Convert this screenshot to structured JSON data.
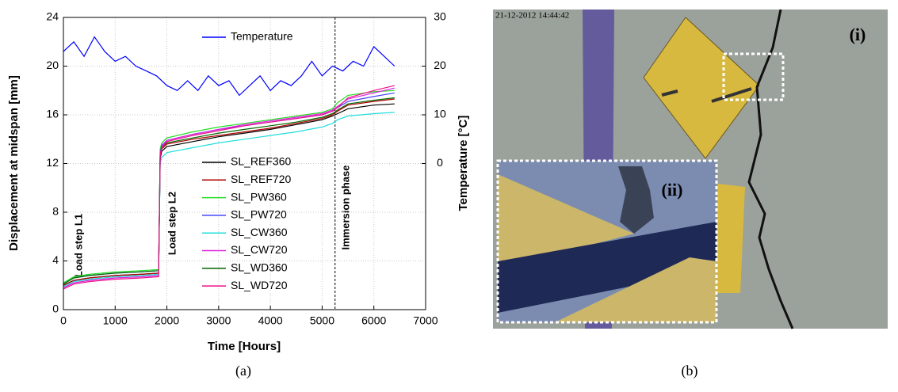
{
  "chart_data": {
    "type": "line",
    "xlabel": "Time [Hours]",
    "ylabel": "Displacement at midspan [mm]",
    "y2label": "Temperature [°C]",
    "annotations": [
      "Load step L1",
      "Load step L2",
      "Immersion phase"
    ],
    "vline_x": 5250,
    "xlim": [
      0,
      7000
    ],
    "xticks": [
      0,
      1000,
      2000,
      3000,
      4000,
      5000,
      6000,
      7000
    ],
    "ylim": [
      0,
      24
    ],
    "yticks": [
      0,
      4,
      8,
      12,
      16,
      20,
      24
    ],
    "y2lim": [
      -30,
      30
    ],
    "y2ticks": [
      0,
      10,
      20,
      30
    ],
    "grid": true,
    "x": [
      0,
      200,
      500,
      1000,
      1500,
      1840,
      1870,
      1900,
      2000,
      2500,
      3000,
      3500,
      4000,
      4500,
      5000,
      5200,
      5300,
      5500,
      6000,
      6400
    ],
    "series": [
      {
        "name": "SL_REF360",
        "color": "#000000",
        "values": [
          2.0,
          2.4,
          2.6,
          2.8,
          2.9,
          3.0,
          12.4,
          13.0,
          13.4,
          13.8,
          14.2,
          14.5,
          14.8,
          15.2,
          15.6,
          15.9,
          16.1,
          16.5,
          16.8,
          16.9
        ]
      },
      {
        "name": "SL_REF720",
        "color": "#b00000",
        "values": [
          2.0,
          2.4,
          2.6,
          2.8,
          2.9,
          3.0,
          12.6,
          13.2,
          13.6,
          14.0,
          14.3,
          14.6,
          14.9,
          15.3,
          15.7,
          16.0,
          16.3,
          16.8,
          17.1,
          17.3
        ]
      },
      {
        "name": "SL_PW360",
        "color": "#22dd22",
        "values": [
          2.2,
          2.7,
          2.9,
          3.1,
          3.2,
          3.3,
          13.2,
          13.7,
          14.1,
          14.6,
          15.0,
          15.3,
          15.6,
          15.9,
          16.2,
          16.5,
          17.0,
          17.6,
          17.9,
          18.0
        ]
      },
      {
        "name": "SL_PW720",
        "color": "#4444ff",
        "values": [
          2.1,
          2.6,
          2.8,
          3.0,
          3.1,
          3.2,
          12.9,
          13.5,
          13.9,
          14.4,
          14.8,
          15.1,
          15.4,
          15.7,
          16.0,
          16.3,
          16.6,
          17.1,
          17.5,
          17.8
        ]
      },
      {
        "name": "SL_CW360",
        "color": "#22dddd",
        "values": [
          1.9,
          2.3,
          2.5,
          2.7,
          2.8,
          2.9,
          12.0,
          12.5,
          12.9,
          13.3,
          13.7,
          14.0,
          14.3,
          14.6,
          15.0,
          15.3,
          15.6,
          15.9,
          16.1,
          16.2
        ]
      },
      {
        "name": "SL_CW720",
        "color": "#dd22dd",
        "values": [
          1.8,
          2.2,
          2.4,
          2.6,
          2.7,
          2.8,
          12.8,
          13.4,
          13.9,
          14.4,
          14.8,
          15.2,
          15.5,
          15.8,
          16.1,
          16.4,
          16.7,
          17.3,
          17.8,
          18.2
        ]
      },
      {
        "name": "SL_WD360",
        "color": "#006600",
        "values": [
          2.1,
          2.6,
          2.8,
          3.0,
          3.1,
          3.2,
          12.7,
          13.3,
          13.7,
          14.1,
          14.5,
          14.8,
          15.1,
          15.4,
          15.8,
          16.1,
          16.4,
          16.9,
          17.2,
          17.4
        ]
      },
      {
        "name": "SL_WD720",
        "color": "#ee1188",
        "values": [
          1.7,
          2.1,
          2.3,
          2.5,
          2.6,
          2.7,
          12.7,
          13.3,
          13.8,
          14.3,
          14.7,
          15.1,
          15.4,
          15.7,
          16.0,
          16.3,
          16.6,
          17.4,
          18.0,
          18.4
        ]
      },
      {
        "name": "Temperature",
        "color": "#0000ff",
        "axis": "y2",
        "x": [
          0,
          200,
          400,
          600,
          800,
          1000,
          1200,
          1400,
          1600,
          1800,
          2000,
          2200,
          2400,
          2600,
          2800,
          3000,
          3200,
          3400,
          3600,
          3800,
          4000,
          4200,
          4400,
          4600,
          4800,
          5000,
          5200,
          5400,
          5600,
          5800,
          6000,
          6200,
          6400
        ],
        "values": [
          23,
          25,
          22,
          26,
          23,
          21,
          22,
          20,
          19,
          18,
          16,
          15,
          17,
          15,
          18,
          16,
          17,
          14,
          16,
          18,
          15,
          17,
          16,
          18,
          21,
          18,
          20,
          19,
          21,
          20,
          24,
          22,
          20
        ]
      }
    ]
  },
  "photo": {
    "timestamp": "21-12-2012 14:44:42",
    "label_i": "(i)",
    "label_ii": "(ii)"
  },
  "captions": [
    "(a)",
    "(b)"
  ]
}
